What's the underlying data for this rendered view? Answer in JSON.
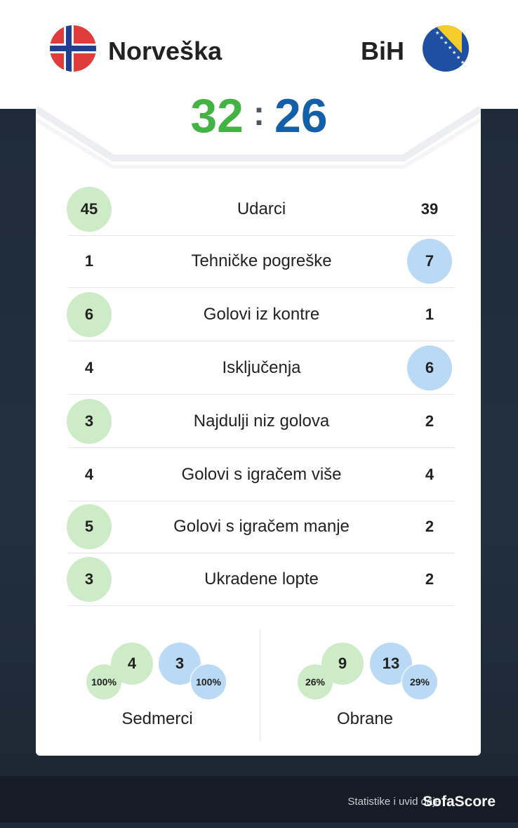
{
  "home": {
    "name": "Norveška",
    "score": "32",
    "flag_icon": "norway-flag-icon"
  },
  "away": {
    "name": "BiH",
    "score": "26",
    "flag_icon": "bosnia-flag-icon"
  },
  "score_separator": ":",
  "colors": {
    "home": "#43b343",
    "away": "#1460a8",
    "home_bubble": "#cdebc6",
    "away_bubble": "#b9d9f5"
  },
  "stats": [
    {
      "label": "Udarci",
      "home": "45",
      "away": "39",
      "leader": "home"
    },
    {
      "label": "Tehničke pogreške",
      "home": "1",
      "away": "7",
      "leader": "away"
    },
    {
      "label": "Golovi iz kontre",
      "home": "6",
      "away": "1",
      "leader": "home"
    },
    {
      "label": "Isključenja",
      "home": "4",
      "away": "6",
      "leader": "away"
    },
    {
      "label": "Najdulji niz golova",
      "home": "3",
      "away": "2",
      "leader": "home"
    },
    {
      "label": "Golovi s igračem više",
      "home": "4",
      "away": "4",
      "leader": "none"
    },
    {
      "label": "Golovi s igračem manje",
      "home": "5",
      "away": "2",
      "leader": "home"
    },
    {
      "label": "Ukradene lopte",
      "home": "3",
      "away": "2",
      "leader": "home"
    }
  ],
  "sedmerci": {
    "label": "Sedmerci",
    "home": "4",
    "home_pct": "100%",
    "away": "3",
    "away_pct": "100%"
  },
  "obrane": {
    "label": "Obrane",
    "home": "9",
    "home_pct": "26%",
    "away": "13",
    "away_pct": "29%"
  },
  "footer": {
    "credit": "Statistike i uvid daje",
    "brand": "SofaScore"
  }
}
